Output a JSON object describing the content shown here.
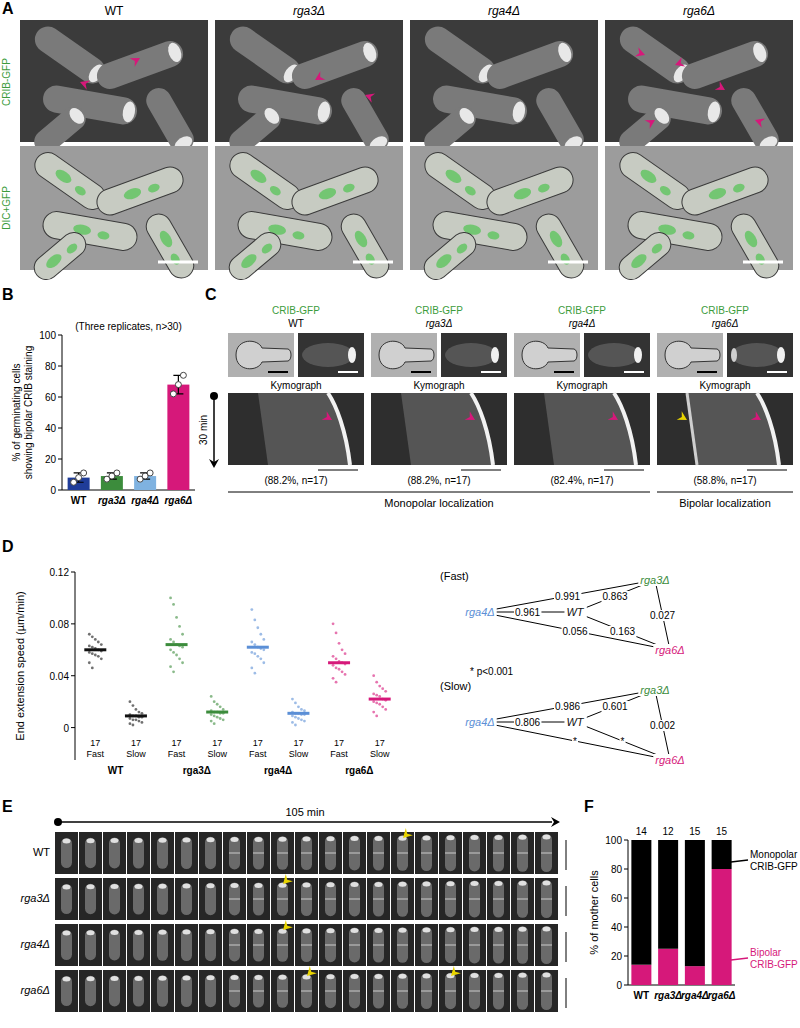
{
  "figure": {
    "panel_A": {
      "label": "A",
      "columns": [
        "WT",
        "rga3Δ",
        "rga4Δ",
        "rga6Δ"
      ],
      "rows": [
        "CRIB-GFP",
        "DIC+GFP"
      ]
    },
    "panel_C": {
      "label": "C",
      "time": "30 min",
      "columns": [
        {
          "channel": "CRIB-GFP",
          "strain": "WT",
          "kymograph": "Kymograph",
          "note": "(88.2%, n=17)",
          "localization": "Monopolar localization"
        },
        {
          "channel": "CRIB-GFP",
          "strain": "rga3Δ",
          "kymograph": "Kymograph",
          "note": "(88.2%, n=17)",
          "localization": "Monopolar localization"
        },
        {
          "channel": "CRIB-GFP",
          "strain": "rga4Δ",
          "kymograph": "Kymograph",
          "note": "(82.4%, n=17)",
          "localization": "Monopolar localization"
        },
        {
          "channel": "CRIB-GFP",
          "strain": "rga6Δ",
          "kymograph": "Kymograph",
          "note": "(58.8%, n=17)",
          "localization": "Bipolar localization"
        }
      ]
    },
    "panel_E": {
      "label": "E",
      "duration": "105 min",
      "rows": [
        "WT",
        "rga3Δ",
        "rga4Δ",
        "rga6Δ"
      ]
    }
  },
  "chart_data": [
    {
      "panel_label": "B",
      "type": "bar",
      "subtitle": "(Three replicates, n>30)",
      "ylabel": [
        "% of germinating cells",
        "showing bipolar CRIB staining"
      ],
      "categories": [
        "WT",
        "rga3Δ",
        "rga4Δ",
        "rga6Δ"
      ],
      "values": [
        8,
        9,
        9,
        68
      ],
      "errors": [
        3,
        2,
        2,
        6
      ],
      "replicates": [
        [
          5,
          8,
          11
        ],
        [
          7,
          9,
          11
        ],
        [
          7,
          9,
          11
        ],
        [
          62,
          68,
          74
        ]
      ],
      "colors": [
        "#1f3c99",
        "#3c8c3c",
        "#7fb2e0",
        "#d6187a"
      ],
      "ylim": [
        0,
        100
      ],
      "yticks": [
        0,
        20,
        40,
        60,
        80,
        100
      ]
    },
    {
      "panel_label": "D",
      "type": "strip",
      "ylabel": "End extension speed (µm/min)",
      "categories": [
        "Fast",
        "Slow",
        "Fast",
        "Slow",
        "Fast",
        "Slow",
        "Fast",
        "Slow"
      ],
      "groups": [
        "WT",
        "rga3Δ",
        "rga4Δ",
        "rga6Δ"
      ],
      "n": [
        17,
        17,
        17,
        17,
        17,
        17,
        17,
        17
      ],
      "means": [
        0.06,
        0.009,
        0.064,
        0.012,
        0.062,
        0.011,
        0.05,
        0.022
      ],
      "points": [
        [
          0.072,
          0.07,
          0.068,
          0.066,
          0.064,
          0.063,
          0.062,
          0.061,
          0.06,
          0.059,
          0.058,
          0.057,
          0.056,
          0.055,
          0.053,
          0.05,
          0.046
        ],
        [
          0.02,
          0.017,
          0.014,
          0.012,
          0.011,
          0.01,
          0.009,
          0.009,
          0.008,
          0.008,
          0.007,
          0.006,
          0.006,
          0.005,
          0.004,
          0.003,
          0.002
        ],
        [
          0.1,
          0.095,
          0.085,
          0.078,
          0.072,
          0.068,
          0.066,
          0.064,
          0.063,
          0.062,
          0.06,
          0.058,
          0.056,
          0.053,
          0.05,
          0.047,
          0.043
        ],
        [
          0.024,
          0.02,
          0.018,
          0.016,
          0.014,
          0.013,
          0.012,
          0.012,
          0.011,
          0.011,
          0.01,
          0.009,
          0.008,
          0.007,
          0.006,
          0.005,
          0.003
        ],
        [
          0.091,
          0.083,
          0.077,
          0.072,
          0.068,
          0.066,
          0.064,
          0.062,
          0.061,
          0.06,
          0.058,
          0.057,
          0.055,
          0.053,
          0.05,
          0.046,
          0.042
        ],
        [
          0.022,
          0.019,
          0.016,
          0.014,
          0.013,
          0.012,
          0.011,
          0.011,
          0.01,
          0.01,
          0.009,
          0.008,
          0.007,
          0.006,
          0.005,
          0.004,
          0.002
        ],
        [
          0.08,
          0.073,
          0.065,
          0.06,
          0.057,
          0.055,
          0.053,
          0.051,
          0.05,
          0.049,
          0.048,
          0.046,
          0.045,
          0.043,
          0.041,
          0.038,
          0.035
        ],
        [
          0.04,
          0.035,
          0.032,
          0.03,
          0.028,
          0.026,
          0.025,
          0.024,
          0.022,
          0.021,
          0.02,
          0.019,
          0.018,
          0.016,
          0.014,
          0.012,
          0.009
        ]
      ],
      "colors": [
        "#111111",
        "#111111",
        "#3c8c3c",
        "#3c8c3c",
        "#5b8fd6",
        "#5b8fd6",
        "#d6187a",
        "#d6187a"
      ],
      "ylim": [
        -0.025,
        0.12
      ],
      "yticks": [
        0,
        0.04,
        0.08,
        0.12
      ],
      "comparisons": [
        {
          "title": "(Fast)",
          "nodes": [
            {
              "name": "rga3Δ",
              "color": "#3c8c3c"
            },
            {
              "name": "rga4Δ",
              "color": "#5b8fd6"
            },
            {
              "name": "WT",
              "color": "#111111"
            },
            {
              "name": "rga6Δ",
              "color": "#d6187a"
            }
          ],
          "pairs": [
            {
              "a": 0,
              "b": 1,
              "label": "0.991"
            },
            {
              "a": 1,
              "b": 2,
              "label": "0.961"
            },
            {
              "a": 2,
              "b": 0,
              "label": "0.863"
            },
            {
              "a": 2,
              "b": 3,
              "label": "0.163"
            },
            {
              "a": 0,
              "b": 3,
              "label": "0.027"
            },
            {
              "a": 1,
              "b": 3,
              "label": "0.056"
            }
          ]
        },
        {
          "title": "(Slow)",
          "nodes": [
            {
              "name": "rga3Δ",
              "color": "#3c8c3c"
            },
            {
              "name": "rga4Δ",
              "color": "#5b8fd6"
            },
            {
              "name": "WT",
              "color": "#111111"
            },
            {
              "name": "rga6Δ",
              "color": "#d6187a"
            }
          ],
          "pairs": [
            {
              "a": 0,
              "b": 1,
              "label": "0.986"
            },
            {
              "a": 1,
              "b": 2,
              "label": "0.806"
            },
            {
              "a": 2,
              "b": 0,
              "label": "0.601"
            },
            {
              "a": 2,
              "b": 3,
              "label": "*"
            },
            {
              "a": 0,
              "b": 3,
              "label": "0.002"
            },
            {
              "a": 1,
              "b": 3,
              "label": "*"
            }
          ]
        }
      ],
      "note": "* p<0.001"
    },
    {
      "panel_label": "F",
      "type": "bar",
      "stacked": true,
      "ylabel": "% of mother cells",
      "categories": [
        "WT",
        "rga3Δ",
        "rga4Δ",
        "rga6Δ"
      ],
      "n": [
        14,
        12,
        15,
        15
      ],
      "series": [
        {
          "name": "Bipolar CRIB-GFP",
          "color": "#d6187a",
          "values": [
            14,
            25,
            13,
            80
          ]
        },
        {
          "name": "Monopolar CRIB-GFP",
          "color": "#000000",
          "values": [
            86,
            75,
            87,
            20
          ]
        }
      ],
      "ylim": [
        0,
        100
      ],
      "yticks": [
        0,
        20,
        40,
        60,
        80,
        100
      ]
    }
  ]
}
